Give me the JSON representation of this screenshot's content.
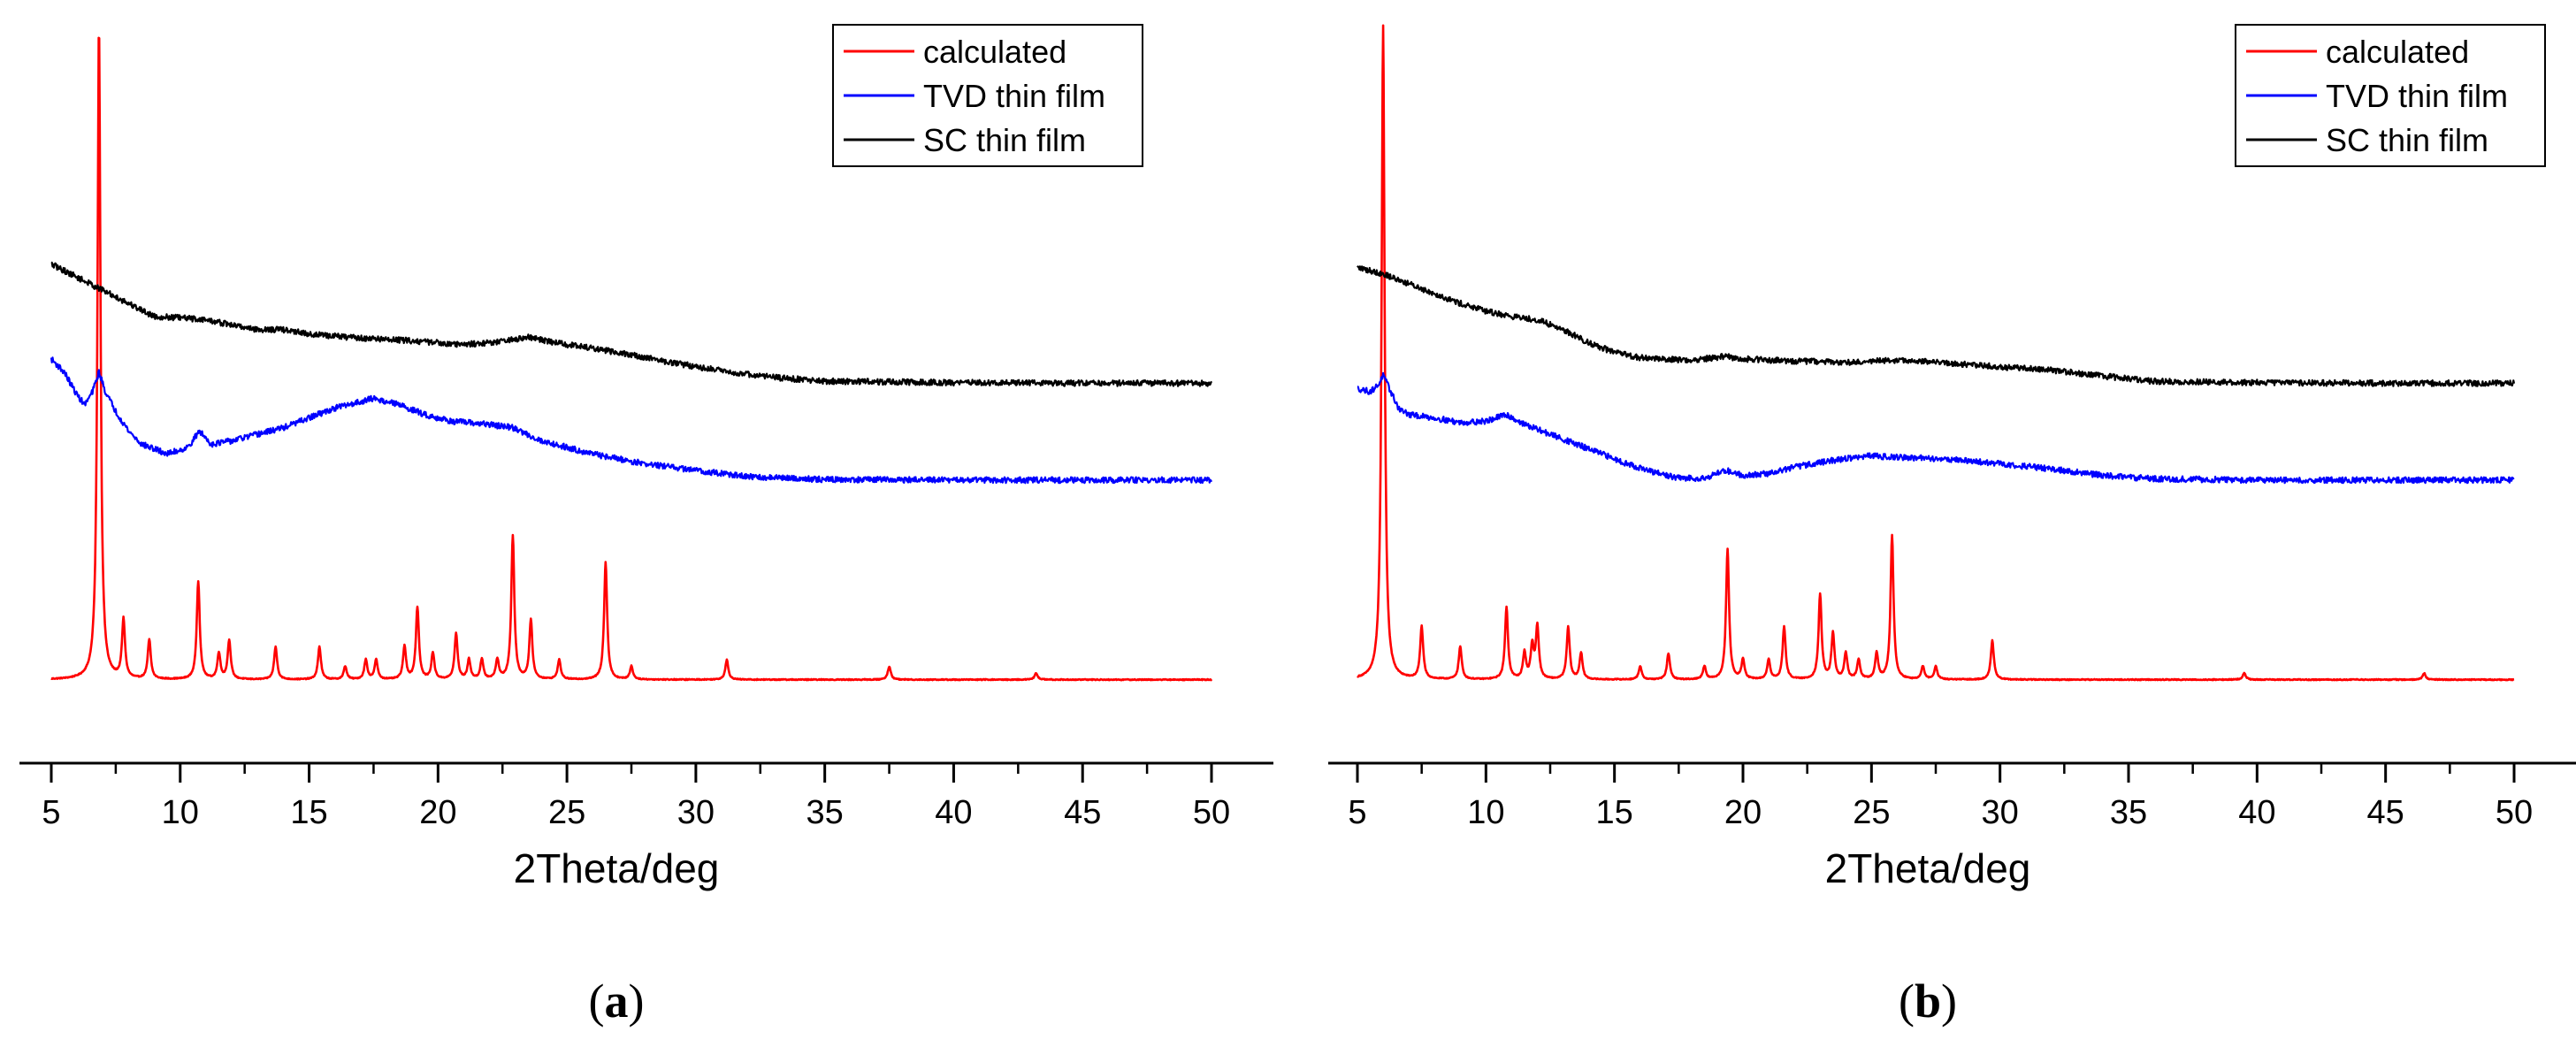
{
  "chart_data": [
    {
      "type": "line",
      "panel_label_open": "(",
      "panel_label_letter": "a",
      "panel_label_close": ")",
      "xlabel": "2Theta/deg",
      "xlim": [
        5,
        50
      ],
      "xticks": [
        5,
        10,
        15,
        20,
        25,
        30,
        35,
        40,
        45,
        50
      ],
      "y_ticks_shown": false,
      "legend_position": "top-right",
      "series": [
        {
          "name": "calculated",
          "color": "#ff0000",
          "baseline": 0.11,
          "peaks": [
            [
              6.85,
              1.0
            ],
            [
              7.8,
              0.09
            ],
            [
              8.8,
              0.06
            ],
            [
              10.7,
              0.15
            ],
            [
              11.5,
              0.04
            ],
            [
              11.9,
              0.06
            ],
            [
              13.7,
              0.05
            ],
            [
              15.4,
              0.05
            ],
            [
              16.4,
              0.02
            ],
            [
              17.2,
              0.03
            ],
            [
              17.6,
              0.03
            ],
            [
              18.7,
              0.05
            ],
            [
              19.2,
              0.11
            ],
            [
              19.8,
              0.04
            ],
            [
              20.7,
              0.07
            ],
            [
              21.2,
              0.03
            ],
            [
              21.7,
              0.03
            ],
            [
              22.3,
              0.03
            ],
            [
              22.9,
              0.22
            ],
            [
              23.6,
              0.09
            ],
            [
              24.7,
              0.03
            ],
            [
              26.5,
              0.18
            ],
            [
              27.5,
              0.02
            ],
            [
              31.2,
              0.03
            ],
            [
              37.5,
              0.02
            ],
            [
              43.2,
              0.01
            ]
          ]
        },
        {
          "name": "TVD thin film",
          "color": "#0000ff",
          "curve": [
            [
              5.0,
              0.6
            ],
            [
              5.5,
              0.58
            ],
            [
              6.0,
              0.545
            ],
            [
              6.3,
              0.53
            ],
            [
              6.6,
              0.55
            ],
            [
              6.85,
              0.58
            ],
            [
              7.1,
              0.55
            ],
            [
              7.5,
              0.52
            ],
            [
              8.0,
              0.49
            ],
            [
              8.5,
              0.47
            ],
            [
              9.5,
              0.455
            ],
            [
              10.3,
              0.465
            ],
            [
              10.75,
              0.49
            ],
            [
              11.2,
              0.47
            ],
            [
              12.0,
              0.475
            ],
            [
              13.0,
              0.485
            ],
            [
              14.0,
              0.495
            ],
            [
              15.0,
              0.51
            ],
            [
              16.0,
              0.525
            ],
            [
              17.0,
              0.535
            ],
            [
              17.5,
              0.54
            ],
            [
              18.5,
              0.53
            ],
            [
              19.5,
              0.515
            ],
            [
              20.5,
              0.505
            ],
            [
              22.0,
              0.5
            ],
            [
              22.9,
              0.495
            ],
            [
              24.0,
              0.475
            ],
            [
              26.0,
              0.455
            ],
            [
              28.0,
              0.44
            ],
            [
              30.0,
              0.43
            ],
            [
              32.0,
              0.42
            ],
            [
              35.0,
              0.416
            ],
            [
              40.0,
              0.415
            ],
            [
              45.0,
              0.415
            ],
            [
              50.0,
              0.415
            ]
          ]
        },
        {
          "name": "SC thin film",
          "color": "#000000",
          "curve": [
            [
              5.0,
              0.745
            ],
            [
              6.0,
              0.725
            ],
            [
              7.0,
              0.705
            ],
            [
              8.0,
              0.685
            ],
            [
              9.0,
              0.665
            ],
            [
              10.0,
              0.663
            ],
            [
              11.0,
              0.66
            ],
            [
              12.0,
              0.652
            ],
            [
              13.0,
              0.645
            ],
            [
              14.0,
              0.645
            ],
            [
              15.0,
              0.638
            ],
            [
              17.0,
              0.632
            ],
            [
              19.0,
              0.628
            ],
            [
              21.0,
              0.622
            ],
            [
              22.5,
              0.627
            ],
            [
              23.5,
              0.633
            ],
            [
              25.0,
              0.622
            ],
            [
              27.0,
              0.61
            ],
            [
              29.0,
              0.595
            ],
            [
              31.0,
              0.582
            ],
            [
              33.0,
              0.572
            ],
            [
              35.0,
              0.566
            ],
            [
              40.0,
              0.564
            ],
            [
              45.0,
              0.563
            ],
            [
              50.0,
              0.563
            ]
          ]
        }
      ]
    },
    {
      "type": "line",
      "panel_label_open": "(",
      "panel_label_letter": "b",
      "panel_label_close": ")",
      "xlabel": "2Theta/deg",
      "xlim": [
        5,
        50
      ],
      "xticks": [
        5,
        10,
        15,
        20,
        25,
        30,
        35,
        40,
        45,
        50
      ],
      "y_ticks_shown": false,
      "legend_position": "top-right",
      "series": [
        {
          "name": "calculated",
          "color": "#ff0000",
          "baseline": 0.11,
          "peaks": [
            [
              6.0,
              1.0
            ],
            [
              7.5,
              0.08
            ],
            [
              9.0,
              0.05
            ],
            [
              10.8,
              0.11
            ],
            [
              11.5,
              0.04
            ],
            [
              11.8,
              0.05
            ],
            [
              12.0,
              0.08
            ],
            [
              13.2,
              0.08
            ],
            [
              13.7,
              0.04
            ],
            [
              16.0,
              0.02
            ],
            [
              17.1,
              0.04
            ],
            [
              18.5,
              0.02
            ],
            [
              19.4,
              0.2
            ],
            [
              20.0,
              0.03
            ],
            [
              21.0,
              0.03
            ],
            [
              21.6,
              0.08
            ],
            [
              23.0,
              0.13
            ],
            [
              23.5,
              0.07
            ],
            [
              24.0,
              0.04
            ],
            [
              24.5,
              0.03
            ],
            [
              25.2,
              0.04
            ],
            [
              25.8,
              0.22
            ],
            [
              27.0,
              0.02
            ],
            [
              27.5,
              0.02
            ],
            [
              29.7,
              0.06
            ],
            [
              39.5,
              0.01
            ],
            [
              46.5,
              0.01
            ]
          ]
        },
        {
          "name": "TVD thin film",
          "color": "#0000ff",
          "curve": [
            [
              5.0,
              0.555
            ],
            [
              5.5,
              0.55
            ],
            [
              5.8,
              0.56
            ],
            [
              6.0,
              0.575
            ],
            [
              6.3,
              0.55
            ],
            [
              6.6,
              0.525
            ],
            [
              7.0,
              0.515
            ],
            [
              8.0,
              0.51
            ],
            [
              9.0,
              0.503
            ],
            [
              10.0,
              0.505
            ],
            [
              10.8,
              0.515
            ],
            [
              11.5,
              0.5
            ],
            [
              12.5,
              0.485
            ],
            [
              13.5,
              0.47
            ],
            [
              14.5,
              0.455
            ],
            [
              15.5,
              0.44
            ],
            [
              16.5,
              0.427
            ],
            [
              17.5,
              0.418
            ],
            [
              18.5,
              0.418
            ],
            [
              19.3,
              0.43
            ],
            [
              19.6,
              0.427
            ],
            [
              20.0,
              0.422
            ],
            [
              21.0,
              0.425
            ],
            [
              22.0,
              0.435
            ],
            [
              23.0,
              0.442
            ],
            [
              24.0,
              0.448
            ],
            [
              25.0,
              0.452
            ],
            [
              26.0,
              0.45
            ],
            [
              28.0,
              0.447
            ],
            [
              30.0,
              0.44
            ],
            [
              32.0,
              0.432
            ],
            [
              34.0,
              0.422
            ],
            [
              36.0,
              0.417
            ],
            [
              40.0,
              0.415
            ],
            [
              45.0,
              0.415
            ],
            [
              50.0,
              0.415
            ]
          ]
        },
        {
          "name": "SC thin film",
          "color": "#000000",
          "curve": [
            [
              5.0,
              0.74
            ],
            [
              6.0,
              0.73
            ],
            [
              7.0,
              0.715
            ],
            [
              8.0,
              0.7
            ],
            [
              9.0,
              0.685
            ],
            [
              10.0,
              0.673
            ],
            [
              11.0,
              0.665
            ],
            [
              12.0,
              0.66
            ],
            [
              13.0,
              0.645
            ],
            [
              14.0,
              0.625
            ],
            [
              15.0,
              0.61
            ],
            [
              16.0,
              0.602
            ],
            [
              17.0,
              0.6
            ],
            [
              18.0,
              0.598
            ],
            [
              19.3,
              0.604
            ],
            [
              20.0,
              0.6
            ],
            [
              22.0,
              0.597
            ],
            [
              24.0,
              0.595
            ],
            [
              26.0,
              0.598
            ],
            [
              28.0,
              0.594
            ],
            [
              30.0,
              0.588
            ],
            [
              32.0,
              0.583
            ],
            [
              34.0,
              0.574
            ],
            [
              36.0,
              0.566
            ],
            [
              40.0,
              0.564
            ],
            [
              45.0,
              0.563
            ],
            [
              50.0,
              0.563
            ]
          ]
        }
      ]
    }
  ]
}
